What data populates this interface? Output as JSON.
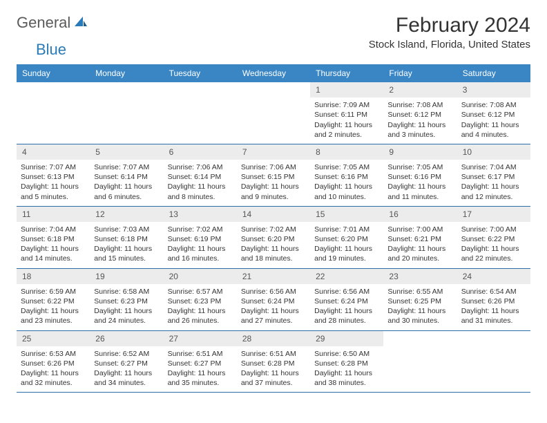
{
  "logo": {
    "general": "General",
    "blue": "Blue"
  },
  "header": {
    "month_title": "February 2024",
    "location": "Stock Island, Florida, United States"
  },
  "weekdays": [
    "Sunday",
    "Monday",
    "Tuesday",
    "Wednesday",
    "Thursday",
    "Friday",
    "Saturday"
  ],
  "colors": {
    "header_bg": "#3a86c5",
    "header_text": "#ffffff",
    "row_border": "#2a6da8",
    "daynum_bg": "#ececec",
    "body_text": "#333333",
    "logo_gray": "#5a5a5a",
    "logo_blue": "#2a7ab7"
  },
  "weeks": [
    [
      {
        "day": "",
        "sunrise": "",
        "sunset": "",
        "daylight1": "",
        "daylight2": ""
      },
      {
        "day": "",
        "sunrise": "",
        "sunset": "",
        "daylight1": "",
        "daylight2": ""
      },
      {
        "day": "",
        "sunrise": "",
        "sunset": "",
        "daylight1": "",
        "daylight2": ""
      },
      {
        "day": "",
        "sunrise": "",
        "sunset": "",
        "daylight1": "",
        "daylight2": ""
      },
      {
        "day": "1",
        "sunrise": "Sunrise: 7:09 AM",
        "sunset": "Sunset: 6:11 PM",
        "daylight1": "Daylight: 11 hours",
        "daylight2": "and 2 minutes."
      },
      {
        "day": "2",
        "sunrise": "Sunrise: 7:08 AM",
        "sunset": "Sunset: 6:12 PM",
        "daylight1": "Daylight: 11 hours",
        "daylight2": "and 3 minutes."
      },
      {
        "day": "3",
        "sunrise": "Sunrise: 7:08 AM",
        "sunset": "Sunset: 6:12 PM",
        "daylight1": "Daylight: 11 hours",
        "daylight2": "and 4 minutes."
      }
    ],
    [
      {
        "day": "4",
        "sunrise": "Sunrise: 7:07 AM",
        "sunset": "Sunset: 6:13 PM",
        "daylight1": "Daylight: 11 hours",
        "daylight2": "and 5 minutes."
      },
      {
        "day": "5",
        "sunrise": "Sunrise: 7:07 AM",
        "sunset": "Sunset: 6:14 PM",
        "daylight1": "Daylight: 11 hours",
        "daylight2": "and 6 minutes."
      },
      {
        "day": "6",
        "sunrise": "Sunrise: 7:06 AM",
        "sunset": "Sunset: 6:14 PM",
        "daylight1": "Daylight: 11 hours",
        "daylight2": "and 8 minutes."
      },
      {
        "day": "7",
        "sunrise": "Sunrise: 7:06 AM",
        "sunset": "Sunset: 6:15 PM",
        "daylight1": "Daylight: 11 hours",
        "daylight2": "and 9 minutes."
      },
      {
        "day": "8",
        "sunrise": "Sunrise: 7:05 AM",
        "sunset": "Sunset: 6:16 PM",
        "daylight1": "Daylight: 11 hours",
        "daylight2": "and 10 minutes."
      },
      {
        "day": "9",
        "sunrise": "Sunrise: 7:05 AM",
        "sunset": "Sunset: 6:16 PM",
        "daylight1": "Daylight: 11 hours",
        "daylight2": "and 11 minutes."
      },
      {
        "day": "10",
        "sunrise": "Sunrise: 7:04 AM",
        "sunset": "Sunset: 6:17 PM",
        "daylight1": "Daylight: 11 hours",
        "daylight2": "and 12 minutes."
      }
    ],
    [
      {
        "day": "11",
        "sunrise": "Sunrise: 7:04 AM",
        "sunset": "Sunset: 6:18 PM",
        "daylight1": "Daylight: 11 hours",
        "daylight2": "and 14 minutes."
      },
      {
        "day": "12",
        "sunrise": "Sunrise: 7:03 AM",
        "sunset": "Sunset: 6:18 PM",
        "daylight1": "Daylight: 11 hours",
        "daylight2": "and 15 minutes."
      },
      {
        "day": "13",
        "sunrise": "Sunrise: 7:02 AM",
        "sunset": "Sunset: 6:19 PM",
        "daylight1": "Daylight: 11 hours",
        "daylight2": "and 16 minutes."
      },
      {
        "day": "14",
        "sunrise": "Sunrise: 7:02 AM",
        "sunset": "Sunset: 6:20 PM",
        "daylight1": "Daylight: 11 hours",
        "daylight2": "and 18 minutes."
      },
      {
        "day": "15",
        "sunrise": "Sunrise: 7:01 AM",
        "sunset": "Sunset: 6:20 PM",
        "daylight1": "Daylight: 11 hours",
        "daylight2": "and 19 minutes."
      },
      {
        "day": "16",
        "sunrise": "Sunrise: 7:00 AM",
        "sunset": "Sunset: 6:21 PM",
        "daylight1": "Daylight: 11 hours",
        "daylight2": "and 20 minutes."
      },
      {
        "day": "17",
        "sunrise": "Sunrise: 7:00 AM",
        "sunset": "Sunset: 6:22 PM",
        "daylight1": "Daylight: 11 hours",
        "daylight2": "and 22 minutes."
      }
    ],
    [
      {
        "day": "18",
        "sunrise": "Sunrise: 6:59 AM",
        "sunset": "Sunset: 6:22 PM",
        "daylight1": "Daylight: 11 hours",
        "daylight2": "and 23 minutes."
      },
      {
        "day": "19",
        "sunrise": "Sunrise: 6:58 AM",
        "sunset": "Sunset: 6:23 PM",
        "daylight1": "Daylight: 11 hours",
        "daylight2": "and 24 minutes."
      },
      {
        "day": "20",
        "sunrise": "Sunrise: 6:57 AM",
        "sunset": "Sunset: 6:23 PM",
        "daylight1": "Daylight: 11 hours",
        "daylight2": "and 26 minutes."
      },
      {
        "day": "21",
        "sunrise": "Sunrise: 6:56 AM",
        "sunset": "Sunset: 6:24 PM",
        "daylight1": "Daylight: 11 hours",
        "daylight2": "and 27 minutes."
      },
      {
        "day": "22",
        "sunrise": "Sunrise: 6:56 AM",
        "sunset": "Sunset: 6:24 PM",
        "daylight1": "Daylight: 11 hours",
        "daylight2": "and 28 minutes."
      },
      {
        "day": "23",
        "sunrise": "Sunrise: 6:55 AM",
        "sunset": "Sunset: 6:25 PM",
        "daylight1": "Daylight: 11 hours",
        "daylight2": "and 30 minutes."
      },
      {
        "day": "24",
        "sunrise": "Sunrise: 6:54 AM",
        "sunset": "Sunset: 6:26 PM",
        "daylight1": "Daylight: 11 hours",
        "daylight2": "and 31 minutes."
      }
    ],
    [
      {
        "day": "25",
        "sunrise": "Sunrise: 6:53 AM",
        "sunset": "Sunset: 6:26 PM",
        "daylight1": "Daylight: 11 hours",
        "daylight2": "and 32 minutes."
      },
      {
        "day": "26",
        "sunrise": "Sunrise: 6:52 AM",
        "sunset": "Sunset: 6:27 PM",
        "daylight1": "Daylight: 11 hours",
        "daylight2": "and 34 minutes."
      },
      {
        "day": "27",
        "sunrise": "Sunrise: 6:51 AM",
        "sunset": "Sunset: 6:27 PM",
        "daylight1": "Daylight: 11 hours",
        "daylight2": "and 35 minutes."
      },
      {
        "day": "28",
        "sunrise": "Sunrise: 6:51 AM",
        "sunset": "Sunset: 6:28 PM",
        "daylight1": "Daylight: 11 hours",
        "daylight2": "and 37 minutes."
      },
      {
        "day": "29",
        "sunrise": "Sunrise: 6:50 AM",
        "sunset": "Sunset: 6:28 PM",
        "daylight1": "Daylight: 11 hours",
        "daylight2": "and 38 minutes."
      },
      {
        "day": "",
        "sunrise": "",
        "sunset": "",
        "daylight1": "",
        "daylight2": ""
      },
      {
        "day": "",
        "sunrise": "",
        "sunset": "",
        "daylight1": "",
        "daylight2": ""
      }
    ]
  ]
}
